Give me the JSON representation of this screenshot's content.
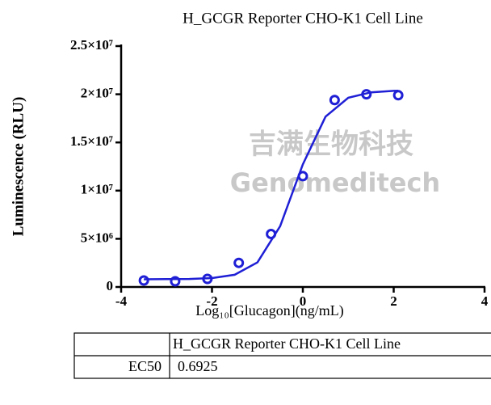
{
  "chart_data": {
    "type": "scatter",
    "title": "H_GCGR Reporter CHO-K1 Cell Line",
    "x_label": "Log₁₀[Glucagon](ng/mL)",
    "y_label": "Luminescence (RLU)",
    "x": [
      -3.5,
      -2.81,
      -2.1,
      -1.41,
      -0.7,
      0,
      0.7,
      1.4,
      2.1
    ],
    "values": [
      670000,
      590000,
      840000,
      2500000,
      5500000,
      11500000,
      19400000,
      20000000,
      19900000
    ],
    "color": "#1f1fd6",
    "fit": {
      "x": [
        -3.5,
        -3,
        -2.5,
        -2,
        -1.5,
        -1,
        -0.5,
        0,
        0.5,
        1,
        1.5,
        2,
        2.1
      ],
      "values": [
        800000,
        810000,
        830000,
        920000,
        1270000,
        2550000,
        6310000,
        12730000,
        17680000,
        19640000,
        20200000,
        20350000,
        20360000
      ]
    },
    "xlim": [
      -4,
      4
    ],
    "xticks": [
      -4,
      -2,
      0,
      2,
      4
    ],
    "ylim": [
      0,
      25000000
    ],
    "yticks": [
      0,
      {
        "value": 5000000,
        "label": "5×10⁶"
      },
      {
        "value": 10000000,
        "label": "1×10⁷"
      },
      {
        "value": 15000000,
        "label": "1.5×10⁷"
      },
      {
        "value": 20000000,
        "label": "2×10⁷"
      },
      {
        "value": 25000000,
        "label": "2.5×10⁷"
      }
    ],
    "watermark": [
      "吉满生物科技",
      "Genomeditech"
    ]
  },
  "table": {
    "header": "H_GCGR Reporter CHO-K1 Cell Line",
    "rows": [
      [
        "EC50",
        "0.6925"
      ]
    ]
  }
}
